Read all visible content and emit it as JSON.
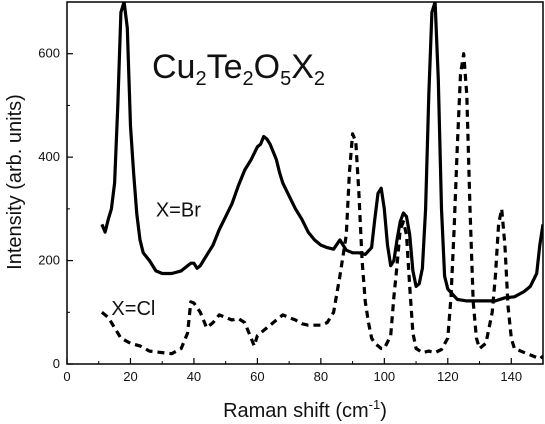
{
  "chart_data": {
    "type": "line",
    "title": {
      "parts": [
        {
          "text": "Cu",
          "sub": false
        },
        {
          "text": "2",
          "sub": true
        },
        {
          "text": "Te",
          "sub": false
        },
        {
          "text": "2",
          "sub": true
        },
        {
          "text": "O",
          "sub": false
        },
        {
          "text": "5",
          "sub": true
        },
        {
          "text": "X",
          "sub": false
        },
        {
          "text": "2",
          "sub": true
        }
      ]
    },
    "xlabel": "Raman  shift (cm",
    "xlabel_sup": "-1",
    "xlabel_end": ")",
    "ylabel": "Intensity (arb. units)",
    "xlim": [
      0,
      150
    ],
    "ylim": [
      0,
      700
    ],
    "xticks": [
      0,
      20,
      40,
      60,
      80,
      100,
      120,
      140
    ],
    "yticks": [
      0,
      200,
      400,
      600
    ],
    "grid": false,
    "series": [
      {
        "name": "X=Br",
        "style": "solid",
        "color": "#000000",
        "label_at": [
          28,
          285
        ],
        "points": [
          [
            11,
            270
          ],
          [
            12,
            255
          ],
          [
            13,
            280
          ],
          [
            14,
            300
          ],
          [
            15,
            350
          ],
          [
            16,
            500
          ],
          [
            17,
            680
          ],
          [
            18,
            700
          ],
          [
            19,
            650
          ],
          [
            20,
            460
          ],
          [
            21,
            370
          ],
          [
            22,
            290
          ],
          [
            23,
            240
          ],
          [
            24,
            215
          ],
          [
            26,
            200
          ],
          [
            28,
            180
          ],
          [
            30,
            175
          ],
          [
            33,
            175
          ],
          [
            36,
            180
          ],
          [
            38,
            190
          ],
          [
            39,
            195
          ],
          [
            40,
            195
          ],
          [
            41,
            185
          ],
          [
            42,
            190
          ],
          [
            44,
            210
          ],
          [
            46,
            230
          ],
          [
            48,
            260
          ],
          [
            50,
            285
          ],
          [
            52,
            310
          ],
          [
            54,
            345
          ],
          [
            56,
            375
          ],
          [
            58,
            395
          ],
          [
            60,
            420
          ],
          [
            61,
            425
          ],
          [
            62,
            440
          ],
          [
            63,
            435
          ],
          [
            64,
            425
          ],
          [
            65,
            410
          ],
          [
            66,
            395
          ],
          [
            67,
            370
          ],
          [
            68,
            350
          ],
          [
            70,
            325
          ],
          [
            72,
            300
          ],
          [
            74,
            280
          ],
          [
            76,
            255
          ],
          [
            78,
            240
          ],
          [
            80,
            230
          ],
          [
            82,
            225
          ],
          [
            84,
            222
          ],
          [
            86,
            240
          ],
          [
            87,
            230
          ],
          [
            88,
            220
          ],
          [
            90,
            215
          ],
          [
            92,
            215
          ],
          [
            94,
            212
          ],
          [
            96,
            225
          ],
          [
            97,
            280
          ],
          [
            98,
            330
          ],
          [
            99,
            340
          ],
          [
            100,
            300
          ],
          [
            101,
            230
          ],
          [
            102,
            190
          ],
          [
            103,
            200
          ],
          [
            104,
            240
          ],
          [
            105,
            275
          ],
          [
            106,
            292
          ],
          [
            107,
            285
          ],
          [
            108,
            250
          ],
          [
            109,
            180
          ],
          [
            110,
            150
          ],
          [
            111,
            155
          ],
          [
            112,
            185
          ],
          [
            113,
            300
          ],
          [
            114,
            520
          ],
          [
            115,
            680
          ],
          [
            116,
            700
          ],
          [
            117,
            550
          ],
          [
            118,
            300
          ],
          [
            119,
            170
          ],
          [
            120,
            145
          ],
          [
            123,
            125
          ],
          [
            126,
            122
          ],
          [
            130,
            122
          ],
          [
            135,
            122
          ],
          [
            138,
            128
          ],
          [
            141,
            130
          ],
          [
            144,
            140
          ],
          [
            146,
            150
          ],
          [
            148,
            175
          ],
          [
            149,
            230
          ],
          [
            150,
            270
          ]
        ]
      },
      {
        "name": "X=Cl",
        "style": "dashed",
        "color": "#000000",
        "label_at": [
          14,
          95
        ],
        "points": [
          [
            11,
            100
          ],
          [
            13,
            90
          ],
          [
            15,
            70
          ],
          [
            17,
            50
          ],
          [
            20,
            40
          ],
          [
            23,
            35
          ],
          [
            26,
            25
          ],
          [
            30,
            22
          ],
          [
            33,
            20
          ],
          [
            36,
            30
          ],
          [
            38,
            60
          ],
          [
            39,
            120
          ],
          [
            40,
            118
          ],
          [
            42,
            100
          ],
          [
            44,
            70
          ],
          [
            46,
            80
          ],
          [
            48,
            95
          ],
          [
            50,
            90
          ],
          [
            52,
            85
          ],
          [
            54,
            88
          ],
          [
            56,
            80
          ],
          [
            58,
            50
          ],
          [
            59,
            35
          ],
          [
            60,
            55
          ],
          [
            62,
            65
          ],
          [
            64,
            75
          ],
          [
            66,
            85
          ],
          [
            68,
            95
          ],
          [
            70,
            90
          ],
          [
            72,
            85
          ],
          [
            74,
            78
          ],
          [
            76,
            75
          ],
          [
            78,
            75
          ],
          [
            80,
            75
          ],
          [
            82,
            80
          ],
          [
            84,
            100
          ],
          [
            86,
            170
          ],
          [
            88,
            250
          ],
          [
            89,
            370
          ],
          [
            90,
            445
          ],
          [
            91,
            430
          ],
          [
            92,
            330
          ],
          [
            93,
            200
          ],
          [
            94,
            120
          ],
          [
            95,
            80
          ],
          [
            96,
            50
          ],
          [
            97,
            40
          ],
          [
            98,
            35
          ],
          [
            99,
            30
          ],
          [
            100,
            30
          ],
          [
            102,
            55
          ],
          [
            103,
            130
          ],
          [
            104,
            190
          ],
          [
            105,
            260
          ],
          [
            106,
            275
          ],
          [
            107,
            250
          ],
          [
            108,
            150
          ],
          [
            109,
            60
          ],
          [
            110,
            30
          ],
          [
            112,
            22
          ],
          [
            114,
            25
          ],
          [
            116,
            22
          ],
          [
            118,
            28
          ],
          [
            120,
            50
          ],
          [
            121,
            130
          ],
          [
            122,
            260
          ],
          [
            123,
            420
          ],
          [
            124,
            560
          ],
          [
            125,
            600
          ],
          [
            126,
            520
          ],
          [
            127,
            300
          ],
          [
            128,
            120
          ],
          [
            129,
            50
          ],
          [
            130,
            30
          ],
          [
            132,
            40
          ],
          [
            133,
            70
          ],
          [
            134,
            100
          ],
          [
            135,
            170
          ],
          [
            136,
            270
          ],
          [
            137,
            300
          ],
          [
            138,
            230
          ],
          [
            139,
            110
          ],
          [
            140,
            50
          ],
          [
            141,
            30
          ],
          [
            143,
            25
          ],
          [
            145,
            20
          ],
          [
            147,
            15
          ],
          [
            149,
            10
          ],
          [
            150,
            15
          ]
        ]
      }
    ]
  }
}
